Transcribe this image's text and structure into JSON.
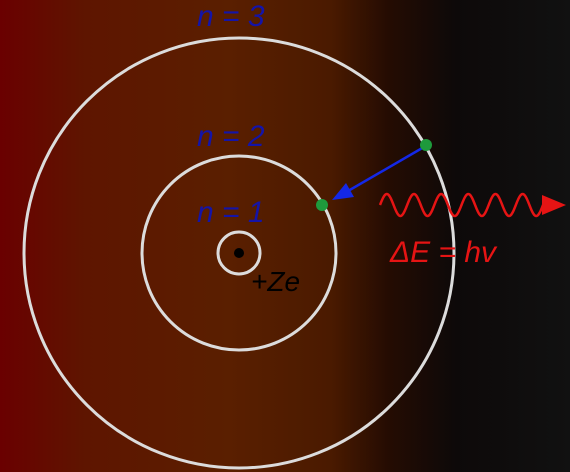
{
  "diagram": {
    "labels": {
      "n3": "n = 3",
      "n2": "n = 2",
      "n1": "n = 1",
      "nucleus": "+Ze",
      "energy": "ΔE = hv"
    },
    "colors": {
      "orbit": "#dcdcdc",
      "shell_label": "#1414a8",
      "electron": "#1e9a3c",
      "transition_arrow": "#1428e6",
      "photon": "#e61414",
      "nucleus": "#000000",
      "nucleus_label": "#000000"
    },
    "shells": [
      {
        "label": "n = 3"
      },
      {
        "label": "n = 2"
      },
      {
        "label": "n = 1"
      }
    ],
    "electrons": [
      "electron-start-n3",
      "electron-end-n2"
    ]
  }
}
